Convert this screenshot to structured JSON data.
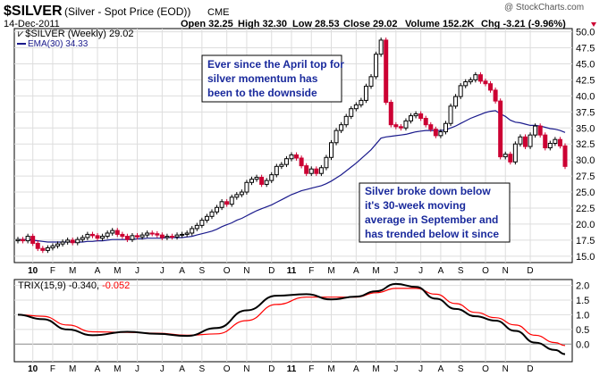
{
  "header": {
    "symbol": "$SILVER",
    "description": "(Silver - Spot Price (EOD))",
    "exchange": "CME",
    "date": "14-Dec-2011",
    "open": "Open 32.25",
    "high": "High 32.30",
    "low": "Low 28.53",
    "close": "Close 29.02",
    "volume": "Volume 152.2K",
    "change": "Chg -3.21 (-9.96%)",
    "watermark": "@ StockCharts.com"
  },
  "legend": {
    "price": "$SILVER (Weekly) 29.02",
    "ema": "EMA(30) 34.33"
  },
  "trix_legend": {
    "label": "TRIX(15,9) -0.340,",
    "signal": "-0.052"
  },
  "annotations": [
    {
      "id": "april-top",
      "lines": [
        "Ever since the April top for",
        "silver momentum has",
        "been to the downside"
      ]
    },
    {
      "id": "breakdown",
      "lines": [
        "Silver broke down below",
        "it's 30-week moving",
        "average in September and",
        "has trended below it since"
      ]
    }
  ],
  "colors": {
    "up": "#000000",
    "down": "#cc0033",
    "ema": "#1a1a8c",
    "trix": "#000000",
    "signal": "#ff0000",
    "annotation_text": "#1a2a9c",
    "change_arrow": "#cc0033"
  },
  "chart_data": [
    {
      "type": "candlestick",
      "title": "$SILVER (Weekly)",
      "x_tick_labels": [
        "10",
        "F",
        "M",
        "A",
        "M",
        "J",
        "J",
        "A",
        "S",
        "O",
        "N",
        "D",
        "11",
        "F",
        "M",
        "A",
        "M",
        "J",
        "J",
        "A",
        "S",
        "O",
        "N",
        "D"
      ],
      "y_ticks": [
        15.0,
        17.5,
        20.0,
        22.5,
        25.0,
        27.5,
        30.0,
        32.5,
        35.0,
        37.5,
        40.0,
        42.5,
        45.0,
        47.5,
        50.0
      ],
      "ylim": [
        14.0,
        50.5
      ],
      "grid": true,
      "series": [
        {
          "name": "$SILVER",
          "close": [
            17.6,
            17.4,
            18.1,
            17.0,
            16.2,
            15.9,
            16.3,
            16.6,
            16.9,
            17.2,
            17.5,
            17.1,
            17.6,
            17.9,
            18.4,
            18.2,
            17.8,
            18.1,
            18.6,
            19.0,
            18.4,
            18.1,
            17.6,
            18.2,
            18.0,
            18.3,
            18.6,
            18.5,
            18.3,
            17.9,
            18.1,
            18.0,
            18.3,
            18.4,
            18.6,
            19.3,
            19.8,
            20.6,
            21.2,
            21.9,
            22.6,
            23.5,
            23.1,
            24.2,
            24.6,
            25.0,
            26.5,
            27.0,
            27.3,
            26.2,
            26.8,
            27.7,
            29.0,
            29.3,
            30.2,
            30.8,
            30.3,
            29.1,
            27.9,
            28.6,
            27.9,
            28.8,
            30.4,
            32.7,
            34.6,
            35.5,
            36.8,
            38.0,
            38.6,
            39.3,
            41.5,
            43.0,
            46.5,
            48.7,
            39.0,
            35.5,
            35.2,
            35.0,
            36.1,
            36.9,
            37.2,
            36.5,
            35.5,
            34.8,
            33.8,
            34.4,
            35.7,
            38.4,
            39.9,
            41.6,
            42.2,
            42.5,
            43.3,
            42.3,
            41.9,
            40.9,
            39.2,
            30.5,
            30.9,
            29.7,
            32.5,
            33.6,
            32.1,
            33.9,
            35.3,
            33.9,
            31.9,
            32.6,
            33.2,
            32.2,
            29.0
          ]
        },
        {
          "name": "EMA(30)",
          "values": [
            17.6,
            17.6,
            17.6,
            17.5,
            17.4,
            17.3,
            17.2,
            17.2,
            17.2,
            17.2,
            17.2,
            17.2,
            17.2,
            17.2,
            17.3,
            17.3,
            17.4,
            17.4,
            17.5,
            17.6,
            17.6,
            17.6,
            17.6,
            17.6,
            17.7,
            17.7,
            17.8,
            17.8,
            17.8,
            17.8,
            17.9,
            17.9,
            17.9,
            17.9,
            18.0,
            18.1,
            18.3,
            18.5,
            18.7,
            18.9,
            19.2,
            19.6,
            19.9,
            20.2,
            20.6,
            20.9,
            21.3,
            21.7,
            22.1,
            22.4,
            22.7,
            23.0,
            23.4,
            23.8,
            24.2,
            24.6,
            24.9,
            25.2,
            25.4,
            25.6,
            25.8,
            26.0,
            26.3,
            26.7,
            27.2,
            27.7,
            28.3,
            28.9,
            29.5,
            30.2,
            30.9,
            31.6,
            32.5,
            33.4,
            33.6,
            33.7,
            33.8,
            33.9,
            34.0,
            34.2,
            34.4,
            34.5,
            34.6,
            34.6,
            34.6,
            34.6,
            34.7,
            35.0,
            35.3,
            35.7,
            36.1,
            36.5,
            36.8,
            37.1,
            37.4,
            37.6,
            37.7,
            37.2,
            36.8,
            36.2,
            35.9,
            35.8,
            35.6,
            35.4,
            35.4,
            35.3,
            35.1,
            34.9,
            34.8,
            34.6,
            34.3
          ]
        }
      ]
    },
    {
      "type": "line",
      "title": "TRIX(15,9)",
      "x_tick_labels": [
        "10",
        "F",
        "M",
        "A",
        "M",
        "J",
        "J",
        "A",
        "S",
        "O",
        "N",
        "D",
        "11",
        "F",
        "M",
        "A",
        "M",
        "J",
        "J",
        "A",
        "S",
        "O",
        "N",
        "D"
      ],
      "y_ticks": [
        0.0,
        0.5,
        1.0,
        1.5,
        2.0
      ],
      "ylim": [
        -0.6,
        2.2
      ],
      "series": [
        {
          "name": "TRIX(15,9)",
          "x_week": [
            0,
            5,
            10,
            15,
            22,
            28,
            34,
            40,
            46,
            52,
            58,
            63,
            68,
            72,
            76,
            80,
            84,
            88,
            92,
            96,
            100,
            104,
            108,
            110
          ],
          "values": [
            1.0,
            0.85,
            0.5,
            0.3,
            0.42,
            0.35,
            0.28,
            0.55,
            1.15,
            1.65,
            1.7,
            1.52,
            1.62,
            1.8,
            2.05,
            1.95,
            1.55,
            1.2,
            0.95,
            0.8,
            0.45,
            0.05,
            -0.2,
            -0.34
          ]
        },
        {
          "name": "Signal",
          "x_week": [
            0,
            5,
            10,
            15,
            22,
            28,
            34,
            40,
            46,
            52,
            58,
            63,
            68,
            72,
            76,
            80,
            84,
            88,
            92,
            96,
            100,
            104,
            108,
            110
          ],
          "values": [
            1.0,
            0.95,
            0.65,
            0.42,
            0.4,
            0.37,
            0.3,
            0.35,
            0.8,
            1.35,
            1.6,
            1.6,
            1.6,
            1.75,
            1.9,
            1.9,
            1.7,
            1.38,
            1.08,
            0.9,
            0.65,
            0.3,
            0.05,
            -0.05
          ]
        }
      ]
    }
  ]
}
